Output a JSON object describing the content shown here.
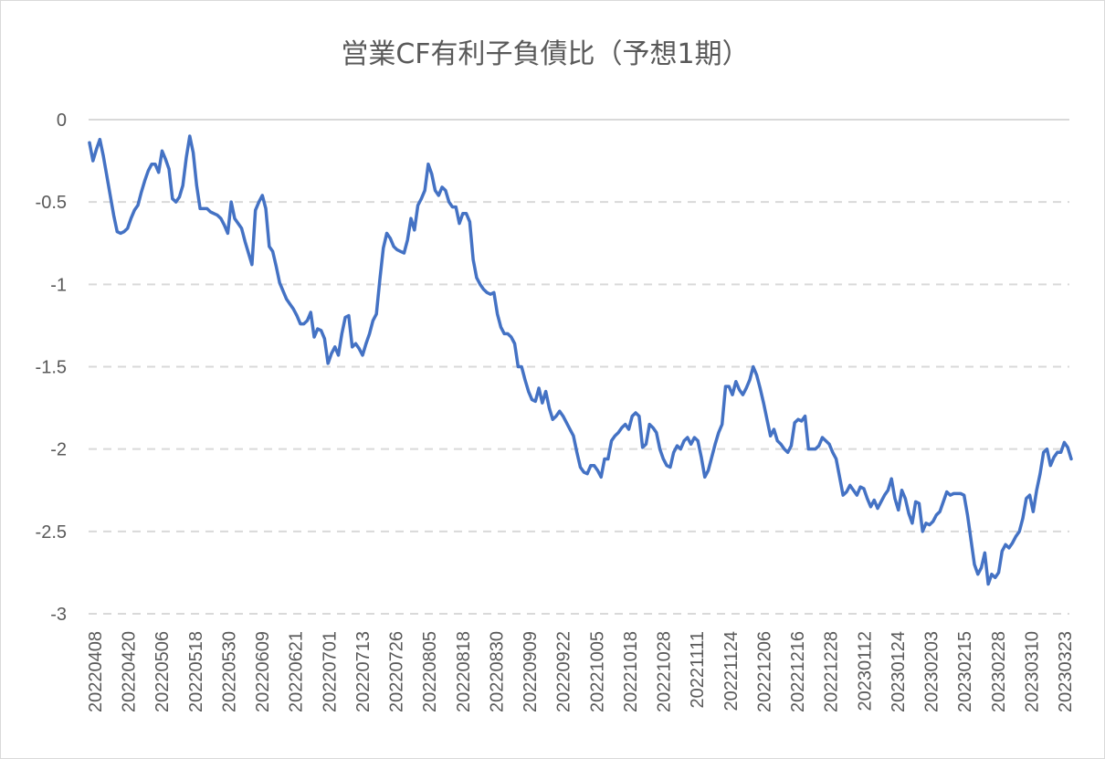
{
  "chart_data": {
    "type": "line",
    "title": "営業CF有利子負債比（予想1期）",
    "xlabel": "",
    "ylabel": "",
    "ylim": [
      -3,
      0
    ],
    "yticks": [
      0,
      -0.5,
      -1,
      -1.5,
      -2,
      -2.5,
      -3
    ],
    "ytick_labels": [
      "0",
      "-0.5",
      "-1",
      "-1.5",
      "-2",
      "-2.5",
      "-3"
    ],
    "gridlines": "horizontal-dashed",
    "legend": "none",
    "line_color": "#4472c4",
    "x_tick_labels": [
      "20220408",
      "20220420",
      "20220506",
      "20220518",
      "20220530",
      "20220609",
      "20220621",
      "20220701",
      "20220713",
      "20220726",
      "20220805",
      "20220818",
      "20220830",
      "20220909",
      "20220922",
      "20221005",
      "20221018",
      "20221028",
      "20221111",
      "20221124",
      "20221206",
      "20221216",
      "20221228",
      "20230112",
      "20230124",
      "20230203",
      "20230215",
      "20230228",
      "20230310",
      "20230323"
    ],
    "series": [
      {
        "values": [
          -0.14,
          -0.25,
          -0.18,
          -0.12,
          -0.22,
          -0.34,
          -0.46,
          -0.58,
          -0.68,
          -0.69,
          -0.68,
          -0.66,
          -0.6,
          -0.55,
          -0.52,
          -0.44,
          -0.37,
          -0.31,
          -0.27,
          -0.27,
          -0.32,
          -0.19,
          -0.24,
          -0.3,
          -0.48,
          -0.5,
          -0.47,
          -0.4,
          -0.23,
          -0.1,
          -0.2,
          -0.4,
          -0.54,
          -0.54,
          -0.54,
          -0.56,
          -0.57,
          -0.58,
          -0.6,
          -0.64,
          -0.69,
          -0.5,
          -0.6,
          -0.63,
          -0.66,
          -0.74,
          -0.81,
          -0.88,
          -0.55,
          -0.5,
          -0.46,
          -0.54,
          -0.77,
          -0.8,
          -0.89,
          -0.99,
          -1.04,
          -1.09,
          -1.12,
          -1.15,
          -1.19,
          -1.24,
          -1.24,
          -1.22,
          -1.17,
          -1.32,
          -1.27,
          -1.28,
          -1.33,
          -1.48,
          -1.42,
          -1.38,
          -1.43,
          -1.3,
          -1.2,
          -1.19,
          -1.38,
          -1.36,
          -1.39,
          -1.43,
          -1.36,
          -1.3,
          -1.22,
          -1.18,
          -0.97,
          -0.78,
          -0.69,
          -0.72,
          -0.77,
          -0.79,
          -0.8,
          -0.81,
          -0.73,
          -0.6,
          -0.67,
          -0.52,
          -0.48,
          -0.43,
          -0.27,
          -0.33,
          -0.43,
          -0.46,
          -0.41,
          -0.43,
          -0.5,
          -0.53,
          -0.53,
          -0.63,
          -0.57,
          -0.57,
          -0.62,
          -0.85,
          -0.96,
          -1.0,
          -1.03,
          -1.05,
          -1.06,
          -1.05,
          -1.18,
          -1.26,
          -1.3,
          -1.3,
          -1.32,
          -1.36,
          -1.5,
          -1.5,
          -1.58,
          -1.65,
          -1.7,
          -1.71,
          -1.63,
          -1.72,
          -1.65,
          -1.75,
          -1.82,
          -1.8,
          -1.77,
          -1.8,
          -1.84,
          -1.88,
          -1.92,
          -2.02,
          -2.11,
          -2.14,
          -2.15,
          -2.1,
          -2.1,
          -2.13,
          -2.17,
          -2.06,
          -2.06,
          -1.95,
          -1.92,
          -1.9,
          -1.87,
          -1.85,
          -1.88,
          -1.8,
          -1.78,
          -1.8,
          -1.99,
          -1.97,
          -1.85,
          -1.87,
          -1.9,
          -2.0,
          -2.06,
          -2.1,
          -2.11,
          -2.02,
          -1.98,
          -2.0,
          -1.95,
          -1.93,
          -1.97,
          -1.93,
          -1.95,
          -2.05,
          -2.17,
          -2.13,
          -2.05,
          -1.97,
          -1.9,
          -1.85,
          -1.62,
          -1.62,
          -1.67,
          -1.59,
          -1.64,
          -1.67,
          -1.63,
          -1.58,
          -1.5,
          -1.55,
          -1.63,
          -1.72,
          -1.82,
          -1.92,
          -1.88,
          -1.95,
          -1.97,
          -2.0,
          -2.02,
          -1.98,
          -1.84,
          -1.82,
          -1.83,
          -1.8,
          -2.0,
          -2.0,
          -2.0,
          -1.98,
          -1.93,
          -1.95,
          -1.97,
          -2.02,
          -2.06,
          -2.17,
          -2.28,
          -2.26,
          -2.22,
          -2.25,
          -2.28,
          -2.23,
          -2.24,
          -2.3,
          -2.35,
          -2.31,
          -2.36,
          -2.32,
          -2.28,
          -2.25,
          -2.18,
          -2.3,
          -2.37,
          -2.25,
          -2.3,
          -2.39,
          -2.45,
          -2.32,
          -2.33,
          -2.5,
          -2.45,
          -2.46,
          -2.44,
          -2.4,
          -2.38,
          -2.32,
          -2.26,
          -2.28,
          -2.27,
          -2.27,
          -2.27,
          -2.28,
          -2.4,
          -2.55,
          -2.7,
          -2.76,
          -2.72,
          -2.63,
          -2.82,
          -2.76,
          -2.78,
          -2.75,
          -2.62,
          -2.58,
          -2.6,
          -2.57,
          -2.53,
          -2.5,
          -2.42,
          -2.3,
          -2.28,
          -2.38,
          -2.25,
          -2.15,
          -2.02,
          -2.0,
          -2.1,
          -2.05,
          -2.02,
          -2.02,
          -1.96,
          -1.99,
          -2.06
        ]
      }
    ]
  }
}
